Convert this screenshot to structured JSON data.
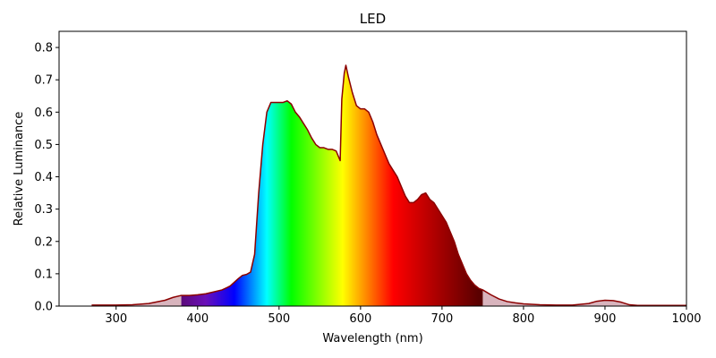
{
  "chart_data": {
    "type": "area",
    "title": "LED",
    "xlabel": "Wavelength (nm)",
    "ylabel": "Relative Luminance",
    "xlim": [
      230,
      1000
    ],
    "ylim": [
      0,
      0.85
    ],
    "xticks": [
      300,
      400,
      500,
      600,
      700,
      800,
      900,
      1000
    ],
    "yticks": [
      0.0,
      0.1,
      0.2,
      0.3,
      0.4,
      0.5,
      0.6,
      0.7,
      0.8
    ],
    "xtick_labels": [
      "300",
      "400",
      "500",
      "600",
      "700",
      "800",
      "900",
      "1000"
    ],
    "ytick_labels": [
      "0.0",
      "0.1",
      "0.2",
      "0.3",
      "0.4",
      "0.5",
      "0.6",
      "0.7",
      "0.8"
    ],
    "visible_spectrum_range": [
      380,
      750
    ],
    "grid": false,
    "colors": {
      "line": "#8b0000",
      "outside_fill": "#d8b4bd",
      "spectrum_stops": [
        "#5b0a7a",
        "#6a0fb8",
        "#0000ff",
        "#00ffff",
        "#00ff00",
        "#ffff00",
        "#ffa500",
        "#ff0000",
        "#b00000",
        "#5a0000"
      ]
    },
    "series": [
      {
        "x": [
          270,
          300,
          320,
          340,
          360,
          370,
          380,
          390,
          400,
          410,
          420,
          430,
          440,
          450,
          455,
          460,
          465,
          470,
          475,
          480,
          485,
          490,
          495,
          500,
          505,
          510,
          515,
          520,
          525,
          530,
          535,
          540,
          545,
          550,
          555,
          560,
          565,
          570,
          575,
          577,
          580,
          582,
          585,
          590,
          595,
          600,
          605,
          610,
          615,
          620,
          625,
          630,
          635,
          640,
          645,
          650,
          655,
          660,
          665,
          670,
          675,
          680,
          685,
          690,
          695,
          700,
          705,
          710,
          715,
          720,
          725,
          730,
          735,
          740,
          745,
          750,
          760,
          770,
          780,
          790,
          800,
          820,
          840,
          860,
          880,
          890,
          900,
          910,
          920,
          930,
          940,
          960,
          980,
          1000
        ],
        "y": [
          0.003,
          0.003,
          0.004,
          0.008,
          0.018,
          0.027,
          0.033,
          0.033,
          0.035,
          0.038,
          0.044,
          0.05,
          0.062,
          0.085,
          0.095,
          0.098,
          0.105,
          0.16,
          0.35,
          0.5,
          0.6,
          0.63,
          0.63,
          0.63,
          0.63,
          0.635,
          0.625,
          0.6,
          0.585,
          0.565,
          0.545,
          0.52,
          0.5,
          0.49,
          0.49,
          0.485,
          0.485,
          0.48,
          0.45,
          0.64,
          0.72,
          0.745,
          0.71,
          0.66,
          0.62,
          0.61,
          0.61,
          0.6,
          0.57,
          0.53,
          0.5,
          0.47,
          0.44,
          0.42,
          0.4,
          0.37,
          0.34,
          0.32,
          0.32,
          0.33,
          0.345,
          0.35,
          0.33,
          0.32,
          0.3,
          0.28,
          0.26,
          0.23,
          0.2,
          0.16,
          0.13,
          0.1,
          0.08,
          0.065,
          0.055,
          0.05,
          0.035,
          0.022,
          0.014,
          0.01,
          0.007,
          0.004,
          0.003,
          0.003,
          0.008,
          0.015,
          0.018,
          0.017,
          0.012,
          0.004,
          0.002,
          0.002,
          0.002,
          0.002
        ]
      }
    ]
  }
}
